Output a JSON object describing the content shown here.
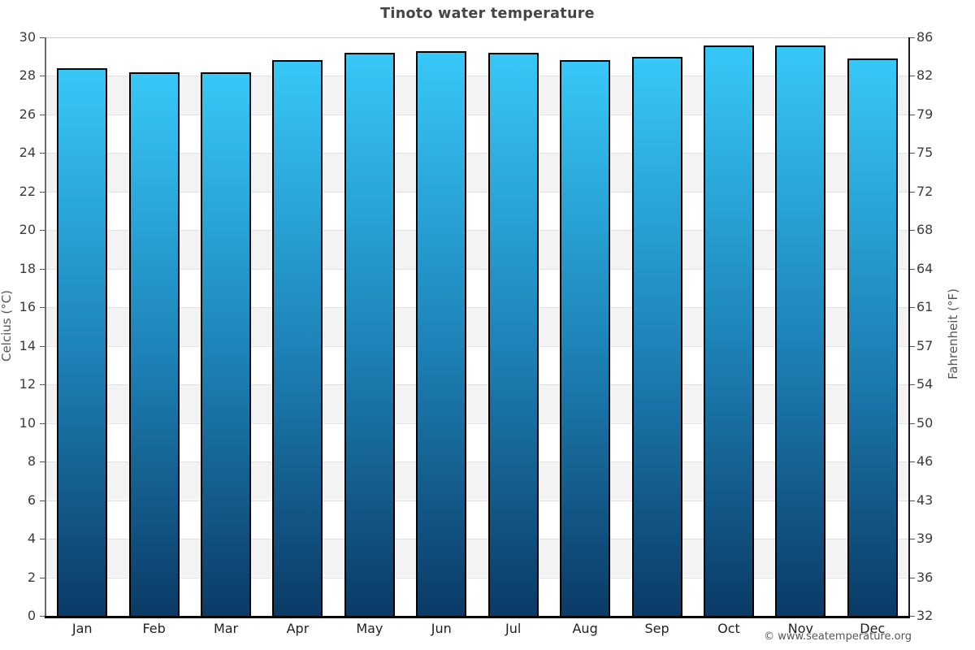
{
  "title": "Tinoto water temperature",
  "watermark": "© www.seatemperature.org",
  "left_axis": {
    "label": "Celcius (°C)",
    "ticks": [
      30,
      28,
      26,
      24,
      22,
      20,
      18,
      16,
      14,
      12,
      10,
      8,
      6,
      4,
      2,
      0
    ]
  },
  "right_axis": {
    "label": "Fahrenheit (°F)",
    "ticks": [
      86,
      82,
      79,
      75,
      72,
      68,
      64,
      61,
      57,
      54,
      50,
      46,
      43,
      39,
      36,
      32
    ]
  },
  "chart_data": {
    "type": "bar",
    "title": "Tinoto water temperature",
    "categories": [
      "Jan",
      "Feb",
      "Mar",
      "Apr",
      "May",
      "Jun",
      "Jul",
      "Aug",
      "Sep",
      "Oct",
      "Nov",
      "Dec"
    ],
    "values": [
      28.4,
      28.2,
      28.2,
      28.8,
      29.2,
      29.3,
      29.2,
      28.8,
      29.0,
      29.6,
      29.6,
      28.9
    ],
    "xlabel": "",
    "ylabel": "Celcius (°C)",
    "ylabel_right": "Fahrenheit (°F)",
    "ylim": [
      0,
      30
    ],
    "ytick_step": 2,
    "right_tick_labels": [
      86,
      82,
      79,
      75,
      72,
      68,
      64,
      61,
      57,
      54,
      50,
      46,
      43,
      39,
      36,
      32
    ],
    "grid": true,
    "legend": "none",
    "background_bands": "alternating gray/white every 2 °C",
    "colors": {
      "bar_gradient_top": "#37c8f7",
      "bar_gradient_mid": "#1e85ba",
      "bar_gradient_bottom": "#0b3a66",
      "bar_border": "#000000",
      "band_gray": "#f3f3f3",
      "gridline": "#e2e2e2",
      "axis_bottom": "#000000",
      "title_text": "#454545",
      "tick_text": "#3c3c3c"
    }
  }
}
